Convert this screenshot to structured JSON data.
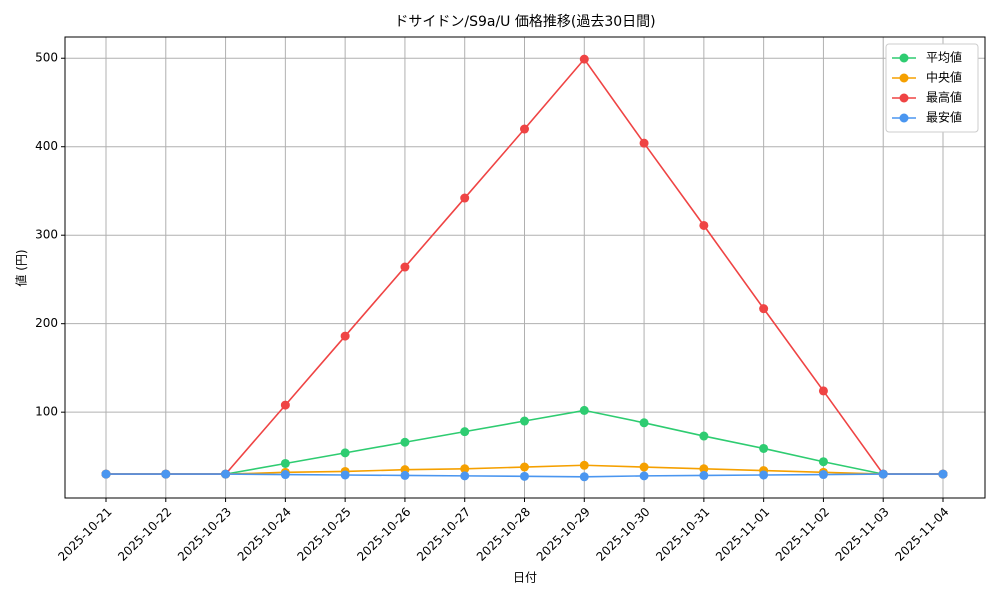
{
  "chart_data": {
    "type": "line",
    "title": "ドサイドン/S9a/U 価格推移(過去30日間)",
    "x_label": "日付",
    "y_label": "値 (円)",
    "categories": [
      "2025-10-21",
      "2025-10-22",
      "2025-10-23",
      "2025-10-24",
      "2025-10-25",
      "2025-10-26",
      "2025-10-27",
      "2025-10-28",
      "2025-10-29",
      "2025-10-30",
      "2025-10-31",
      "2025-11-01",
      "2025-11-02",
      "2025-11-03",
      "2025-11-04"
    ],
    "series": [
      {
        "name": "平均値",
        "color": "#2ecc71",
        "values": [
          30,
          30,
          30,
          42,
          54,
          66,
          78,
          90,
          102,
          88,
          73,
          59,
          44,
          30,
          30
        ]
      },
      {
        "name": "中央値",
        "color": "#f5a000",
        "values": [
          30,
          30,
          30,
          32,
          33,
          35,
          36,
          38,
          40,
          38,
          36,
          34,
          32,
          30,
          30
        ]
      },
      {
        "name": "最高値",
        "color": "#ef4444",
        "values": [
          30,
          30,
          30,
          108,
          186,
          264,
          342,
          420,
          499,
          404,
          311,
          217,
          124,
          30,
          30
        ]
      },
      {
        "name": "最安値",
        "color": "#4a96f0",
        "values": [
          30,
          30,
          30,
          29.5,
          29,
          28.5,
          28,
          27.5,
          27,
          28,
          28.5,
          29,
          29.5,
          30,
          30
        ]
      }
    ],
    "ylim": [
      3,
      524
    ],
    "yticks": [
      100,
      200,
      300,
      400,
      500
    ],
    "grid": true,
    "legend": "upper right"
  }
}
